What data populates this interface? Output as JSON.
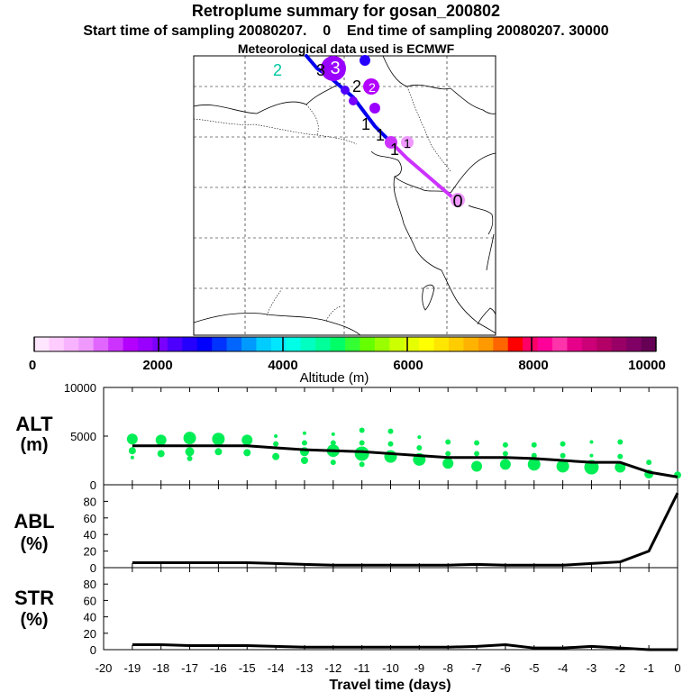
{
  "title": "Retroplume summary for gosan_200802",
  "start_time": "Start time of sampling 20080207.    0",
  "end_time": "End time of sampling 20080207. 30000",
  "met_data": "Meteorological data used is ECMWF",
  "colors": {
    "colorbar": [
      "#ffe6ff",
      "#ffccff",
      "#f7b3ff",
      "#ef99ff",
      "#e066ff",
      "#cc33ff",
      "#b300ff",
      "#9900ff",
      "#7a00ff",
      "#4d00ff",
      "#2600ff",
      "#0000ff",
      "#0033ff",
      "#0066ff",
      "#0099ff",
      "#00ccff",
      "#00e6ff",
      "#00ffe6",
      "#00ffc0",
      "#00ff99",
      "#00ff66",
      "#33ff33",
      "#66ff00",
      "#99ff00",
      "#ccff00",
      "#e6ff00",
      "#ffff00",
      "#ffe600",
      "#ffcc00",
      "#ffb300",
      "#ff9900",
      "#ff6600",
      "#ff0000",
      "#ff0066",
      "#ff0099",
      "#ff33aa",
      "#e6008a",
      "#cc0077",
      "#b30066",
      "#990066",
      "#800066",
      "#660055"
    ],
    "track_blue": "#0000ee",
    "track_magenta": "#cc33ff",
    "points_green": "#00ee55"
  },
  "map": {
    "labels": [
      {
        "text": "2",
        "color": "#00c8a0"
      },
      {
        "text": "3",
        "color": "#000000"
      },
      {
        "text": "3",
        "color": "#ffffff"
      },
      {
        "text": "2",
        "color": "#000000"
      },
      {
        "text": "2",
        "color": "#ffffff"
      },
      {
        "text": "1",
        "color": "#000000"
      },
      {
        "text": "1",
        "color": "#000000"
      },
      {
        "text": "1",
        "color": "#000000"
      },
      {
        "text": "1",
        "color": "#000000"
      },
      {
        "text": "0",
        "color": "#000000"
      }
    ]
  },
  "colorbar": {
    "ticks": [
      "0",
      "2000",
      "4000",
      "6000",
      "8000",
      "10000"
    ],
    "label": "Altitude (m)"
  },
  "chart_data": [
    {
      "type": "line",
      "panel": "ALT",
      "ylabel": "ALT",
      "yunit": "(m)",
      "ylim": [
        0,
        10000
      ],
      "yticks": [
        "0",
        "5000",
        "10000"
      ],
      "x": [
        -19,
        -18,
        -17,
        -16,
        -15,
        -14,
        -13,
        -12,
        -11,
        -10,
        -9,
        -8,
        -7,
        -6,
        -5,
        -4,
        -3,
        -2,
        -1,
        0
      ],
      "values": [
        4000,
        4000,
        4000,
        4000,
        4000,
        3800,
        3600,
        3500,
        3400,
        3200,
        3000,
        2800,
        2800,
        2800,
        2700,
        2500,
        2300,
        2300,
        1300,
        800
      ],
      "point_clusters": [
        {
          "x": -19,
          "points": [
            [
              4700,
              6
            ],
            [
              3500,
              4
            ],
            [
              2800,
              2
            ]
          ]
        },
        {
          "x": -18,
          "points": [
            [
              4600,
              6
            ],
            [
              3200,
              4
            ]
          ]
        },
        {
          "x": -17,
          "points": [
            [
              4800,
              7
            ],
            [
              3400,
              5
            ],
            [
              2700,
              3
            ]
          ]
        },
        {
          "x": -16,
          "points": [
            [
              4700,
              7
            ],
            [
              3400,
              4
            ]
          ]
        },
        {
          "x": -15,
          "points": [
            [
              4600,
              6
            ],
            [
              3300,
              4
            ]
          ]
        },
        {
          "x": -14,
          "points": [
            [
              5000,
              2
            ],
            [
              4200,
              3
            ],
            [
              2900,
              4
            ]
          ]
        },
        {
          "x": -13,
          "points": [
            [
              5300,
              2
            ],
            [
              4300,
              3
            ],
            [
              3400,
              5
            ],
            [
              2500,
              4
            ]
          ]
        },
        {
          "x": -12,
          "points": [
            [
              5200,
              2
            ],
            [
              4300,
              3
            ],
            [
              3500,
              7
            ],
            [
              2300,
              3
            ]
          ]
        },
        {
          "x": -11,
          "points": [
            [
              5600,
              3
            ],
            [
              4300,
              3
            ],
            [
              3200,
              8
            ],
            [
              2100,
              3
            ]
          ]
        },
        {
          "x": -10,
          "points": [
            [
              5500,
              3
            ],
            [
              4200,
              3
            ],
            [
              2900,
              7
            ]
          ]
        },
        {
          "x": -9,
          "points": [
            [
              4900,
              2
            ],
            [
              3800,
              3
            ],
            [
              2600,
              7
            ]
          ]
        },
        {
          "x": -8,
          "points": [
            [
              4400,
              3
            ],
            [
              3200,
              3
            ],
            [
              2200,
              6
            ]
          ]
        },
        {
          "x": -7,
          "points": [
            [
              4300,
              3
            ],
            [
              3200,
              3
            ],
            [
              1900,
              6
            ]
          ]
        },
        {
          "x": -6,
          "points": [
            [
              4100,
              3
            ],
            [
              3200,
              3
            ],
            [
              2100,
              6
            ]
          ]
        },
        {
          "x": -5,
          "points": [
            [
              4100,
              3
            ],
            [
              3000,
              3
            ],
            [
              2100,
              7
            ]
          ]
        },
        {
          "x": -4,
          "points": [
            [
              4200,
              3
            ],
            [
              3000,
              3
            ],
            [
              1900,
              7
            ]
          ]
        },
        {
          "x": -3,
          "points": [
            [
              4400,
              2
            ],
            [
              3000,
              2
            ],
            [
              1800,
              8
            ]
          ]
        },
        {
          "x": -2,
          "points": [
            [
              4400,
              3
            ],
            [
              2900,
              3
            ],
            [
              1800,
              6
            ]
          ]
        },
        {
          "x": -1,
          "points": [
            [
              2300,
              3
            ],
            [
              1100,
              5
            ]
          ]
        },
        {
          "x": 0,
          "points": [
            [
              1000,
              4
            ]
          ]
        }
      ]
    },
    {
      "type": "line",
      "panel": "ABL",
      "ylabel": "ABL",
      "yunit": "(%)",
      "ylim": [
        0,
        100
      ],
      "yticks": [
        "0",
        "20",
        "40",
        "60",
        "80"
      ],
      "x": [
        -19,
        -18,
        -17,
        -16,
        -15,
        -14,
        -13,
        -12,
        -11,
        -10,
        -9,
        -8,
        -7,
        -6,
        -5,
        -4,
        -3,
        -2,
        -1,
        0
      ],
      "values": [
        6,
        6,
        6,
        6,
        6,
        5,
        4,
        3,
        3,
        3,
        3,
        3,
        4,
        3,
        3,
        3,
        5,
        7,
        20,
        90
      ]
    },
    {
      "type": "line",
      "panel": "STR",
      "ylabel": "STR",
      "yunit": "(%)",
      "ylim": [
        0,
        100
      ],
      "yticks": [
        "0",
        "20",
        "40",
        "60",
        "80"
      ],
      "x": [
        -19,
        -18,
        -17,
        -16,
        -15,
        -14,
        -13,
        -12,
        -11,
        -10,
        -9,
        -8,
        -7,
        -6,
        -5,
        -4,
        -3,
        -2,
        -1,
        0
      ],
      "values": [
        6,
        6,
        5,
        5,
        5,
        4,
        3,
        3,
        3,
        3,
        3,
        3,
        4,
        6,
        2,
        2,
        4,
        2,
        0,
        0
      ]
    }
  ],
  "xaxis": {
    "ticks": [
      "-20",
      "-19",
      "-18",
      "-17",
      "-16",
      "-15",
      "-14",
      "-13",
      "-12",
      "-11",
      "-10",
      "-9",
      "-8",
      "-7",
      "-6",
      "-5",
      "-4",
      "-3",
      "-2",
      "-1",
      "0"
    ],
    "label": "Travel time (days)"
  }
}
